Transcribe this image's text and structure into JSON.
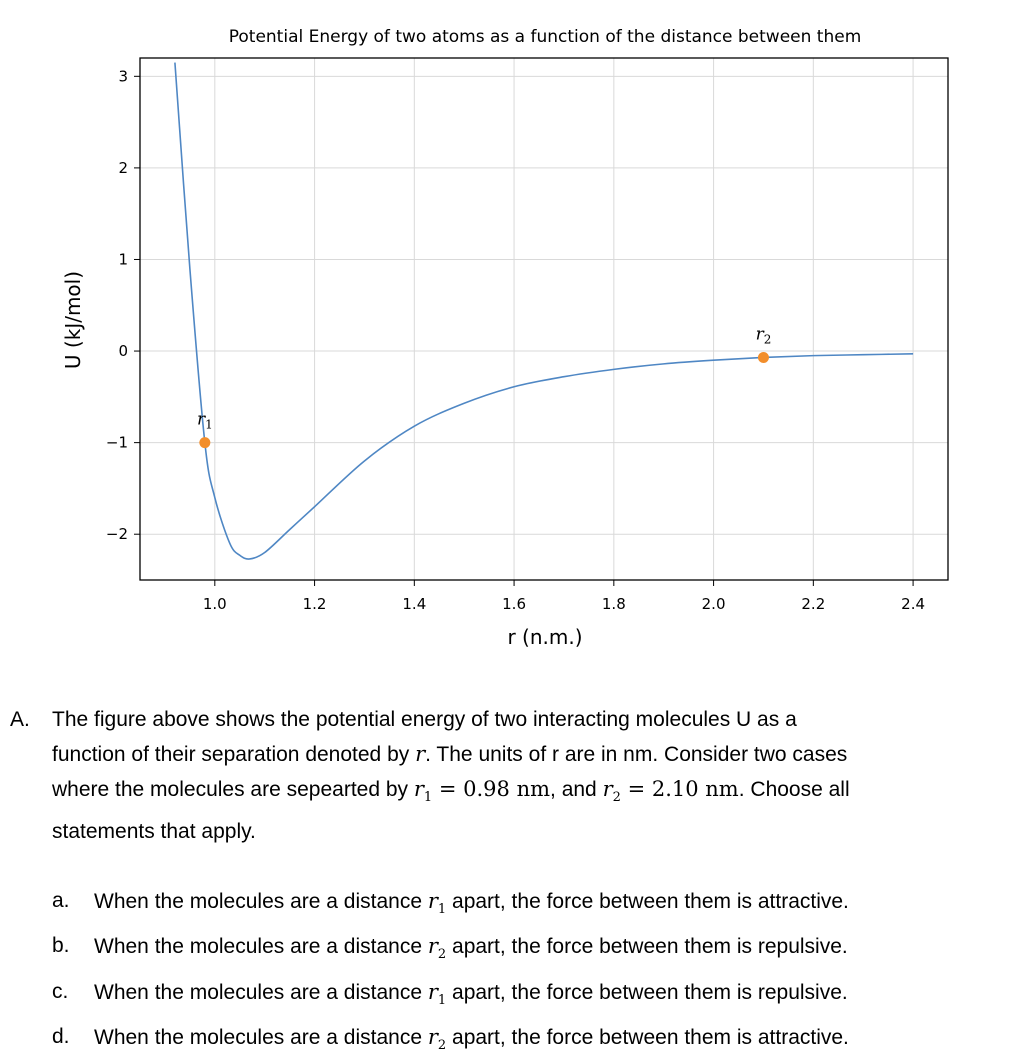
{
  "chart_data": {
    "type": "line",
    "title": "Potential Energy of two atoms as a function of the distance between them",
    "xlabel": "r (n.m.)",
    "ylabel": "U (kJ/mol)",
    "xlim": [
      0.85,
      2.47
    ],
    "ylim": [
      -2.5,
      3.2
    ],
    "xticks": [
      "1.0",
      "1.2",
      "1.4",
      "1.6",
      "1.8",
      "2.0",
      "2.2",
      "2.4"
    ],
    "yticks": [
      "3",
      "2",
      "1",
      "0",
      "−1",
      "−2"
    ],
    "grid": true,
    "series": [
      {
        "color": "#4f87c4",
        "x": [
          0.92,
          0.95,
          0.98,
          1.0,
          1.03,
          1.05,
          1.07,
          1.1,
          1.15,
          1.2,
          1.3,
          1.4,
          1.5,
          1.6,
          1.7,
          1.8,
          1.9,
          2.0,
          2.1,
          2.2,
          2.3,
          2.4
        ],
        "y": [
          3.15,
          0.9,
          -1.0,
          -1.6,
          -2.1,
          -2.23,
          -2.27,
          -2.2,
          -1.95,
          -1.7,
          -1.2,
          -0.82,
          -0.57,
          -0.39,
          -0.28,
          -0.2,
          -0.14,
          -0.1,
          -0.07,
          -0.05,
          -0.04,
          -0.03
        ]
      }
    ],
    "points": [
      {
        "label": "r",
        "sub": "1",
        "x": 0.98,
        "y": -1.0,
        "color": "#f28e2b"
      },
      {
        "label": "r",
        "sub": "2",
        "x": 2.1,
        "y": -0.07,
        "color": "#f28e2b"
      }
    ]
  },
  "question": {
    "letter": "A.",
    "line1": "The figure above shows the potential energy of two interacting molecules U as a",
    "line2a": "function of their separation denoted by ",
    "line2var": "r",
    "line2b": ". The units of r are in nm. Consider two cases",
    "line3a": "where the molecules are sepearted by ",
    "r1sym": "r",
    "r1sub": "1",
    "r1eq": " = 0.98 nm",
    "line3mid": ", and ",
    "r2sym": "r",
    "r2sub": "2",
    "r2eq": " = 2.10 nm",
    "line3b": ". Choose all",
    "line4": "statements that apply.",
    "options": [
      {
        "letter": "a.",
        "pre": "When the molecules are a distance ",
        "sym": "r",
        "sub": "1",
        "post": " apart, the force between them is attractive."
      },
      {
        "letter": "b.",
        "pre": "When the molecules are a distance ",
        "sym": "r",
        "sub": "2",
        "post": " apart, the force between them is repulsive."
      },
      {
        "letter": "c.",
        "pre": "When the molecules are a distance ",
        "sym": "r",
        "sub": "1",
        "post": " apart, the force between them is repulsive."
      },
      {
        "letter": "d.",
        "pre": "When the molecules are a distance ",
        "sym": "r",
        "sub": "2",
        "post": " apart, the force between them is attractive."
      }
    ]
  }
}
